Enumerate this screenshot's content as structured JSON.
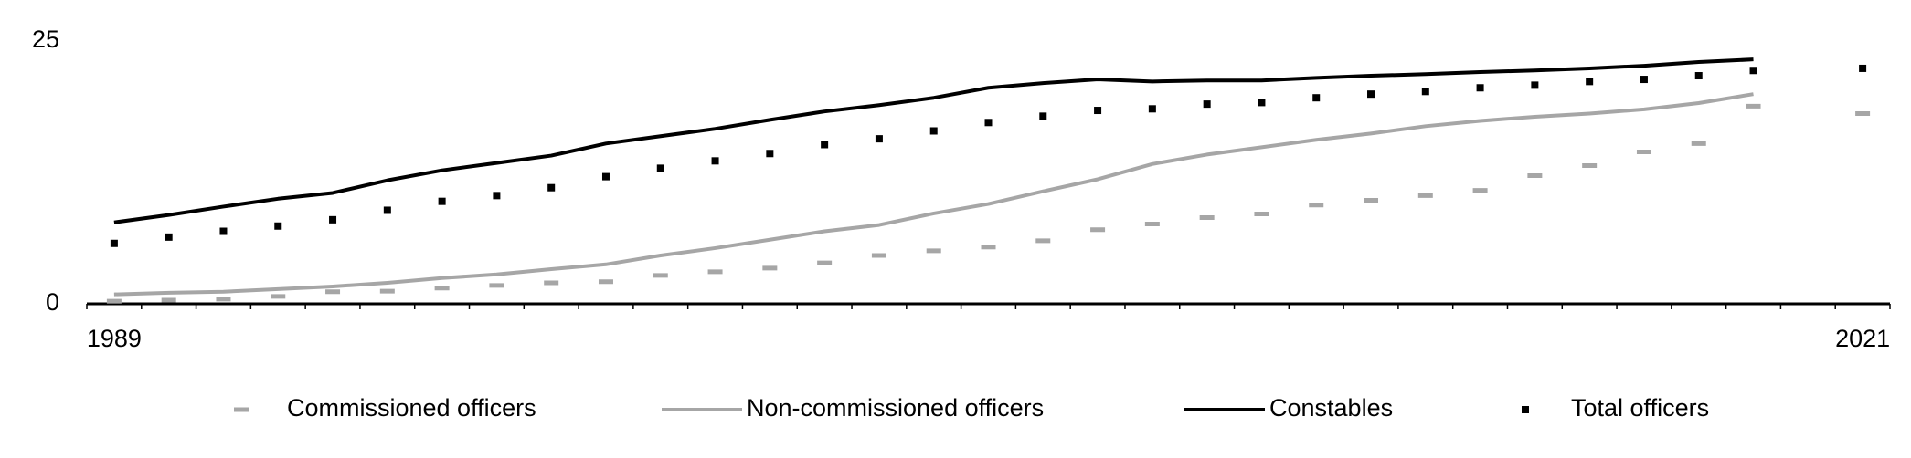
{
  "chart_data": {
    "type": "line",
    "categories": [
      "1989",
      null,
      null,
      null,
      null,
      null,
      null,
      null,
      null,
      null,
      null,
      null,
      null,
      null,
      null,
      null,
      null,
      null,
      null,
      null,
      null,
      null,
      null,
      null,
      null,
      null,
      null,
      null,
      null,
      null,
      null,
      null,
      "2021"
    ],
    "series": [
      {
        "name": "Commissioned officers",
        "color": "#a6a6a6",
        "style": "dash",
        "values": [
          0.25,
          0.35,
          0.45,
          0.7,
          1.15,
          1.2,
          1.5,
          1.75,
          2.0,
          2.1,
          2.7,
          3.05,
          3.4,
          3.9,
          4.6,
          5.05,
          5.4,
          6.0,
          7.05,
          7.6,
          8.2,
          8.55,
          9.4,
          9.85,
          10.3,
          10.8,
          12.2,
          13.15,
          14.45,
          15.25,
          18.8,
          null,
          18.1
        ]
      },
      {
        "name": "Non-commissioned officers",
        "color": "#a6a6a6",
        "style": "line",
        "values": [
          0.9,
          1.05,
          1.15,
          1.4,
          1.65,
          2.0,
          2.45,
          2.8,
          3.3,
          3.75,
          4.6,
          5.3,
          6.1,
          6.9,
          7.5,
          8.6,
          9.5,
          10.7,
          11.85,
          13.3,
          14.2,
          14.9,
          15.6,
          16.2,
          16.9,
          17.4,
          17.8,
          18.1,
          18.5,
          19.1,
          19.95,
          null,
          null
        ]
      },
      {
        "name": "Constables",
        "color": "#000000",
        "style": "line",
        "values": [
          7.75,
          8.45,
          9.25,
          10.0,
          10.55,
          11.75,
          12.7,
          13.4,
          14.1,
          15.25,
          15.95,
          16.65,
          17.5,
          18.3,
          18.9,
          19.6,
          20.55,
          21.0,
          21.35,
          21.15,
          21.25,
          21.25,
          21.5,
          21.7,
          21.85,
          22.05,
          22.2,
          22.4,
          22.65,
          23.0,
          23.25,
          null,
          null
        ]
      },
      {
        "name": "Total officers",
        "color": "#000000",
        "style": "dot",
        "values": [
          5.75,
          6.35,
          6.9,
          7.4,
          8.0,
          8.9,
          9.75,
          10.3,
          11.05,
          12.1,
          12.9,
          13.6,
          14.3,
          15.15,
          15.7,
          16.45,
          17.25,
          17.85,
          18.4,
          18.55,
          19.0,
          19.15,
          19.6,
          19.95,
          20.2,
          20.55,
          20.8,
          21.15,
          21.35,
          21.7,
          22.2,
          null,
          22.4
        ]
      }
    ],
    "ylim": [
      0,
      25
    ],
    "yticks": [
      0,
      25
    ],
    "grid": false
  }
}
